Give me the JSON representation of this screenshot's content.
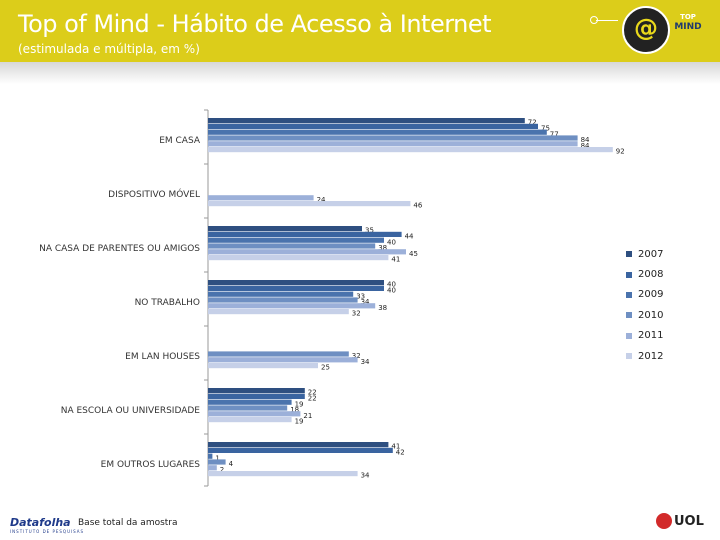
{
  "header": {
    "title": "Top of Mind - Hábito de Acesso à Internet",
    "subtitle": "(estimulada e múltipla, em %)",
    "logo_symbol": "@",
    "logo_line1": "TOP",
    "logo_line2": "MIND"
  },
  "footer": {
    "brand": "Datafolha",
    "note": "Base total da amostra",
    "partner": "UOL"
  },
  "colors": {
    "header_bg": "#dccd1a",
    "series": [
      "#2e4f80",
      "#3a64a0",
      "#4a73ad",
      "#6e8fc2",
      "#9cb0d9",
      "#c6d0e8"
    ]
  },
  "chart_data": {
    "type": "bar",
    "orientation": "horizontal",
    "categories": [
      "EM CASA",
      "DISPOSITIVO MÓVEL",
      "NA CASA DE PARENTES OU AMIGOS",
      "NO TRABALHO",
      "EM LAN HOUSES",
      "NA ESCOLA OU UNIVERSIDADE",
      "EM OUTROS LUGARES"
    ],
    "series": [
      {
        "name": "2007",
        "values": [
          72,
          null,
          35,
          40,
          null,
          22,
          41
        ]
      },
      {
        "name": "2008",
        "values": [
          75,
          null,
          44,
          40,
          null,
          22,
          42
        ]
      },
      {
        "name": "2009",
        "values": [
          77,
          null,
          40,
          33,
          null,
          19,
          1
        ]
      },
      {
        "name": "2010",
        "values": [
          84,
          null,
          38,
          34,
          32,
          18,
          4
        ]
      },
      {
        "name": "2011",
        "values": [
          84,
          24,
          45,
          38,
          34,
          21,
          2
        ]
      },
      {
        "name": "2012",
        "values": [
          92,
          46,
          41,
          32,
          25,
          19,
          34
        ]
      }
    ],
    "xlim": [
      0,
      100
    ],
    "legend_position": "right",
    "grid": false
  }
}
